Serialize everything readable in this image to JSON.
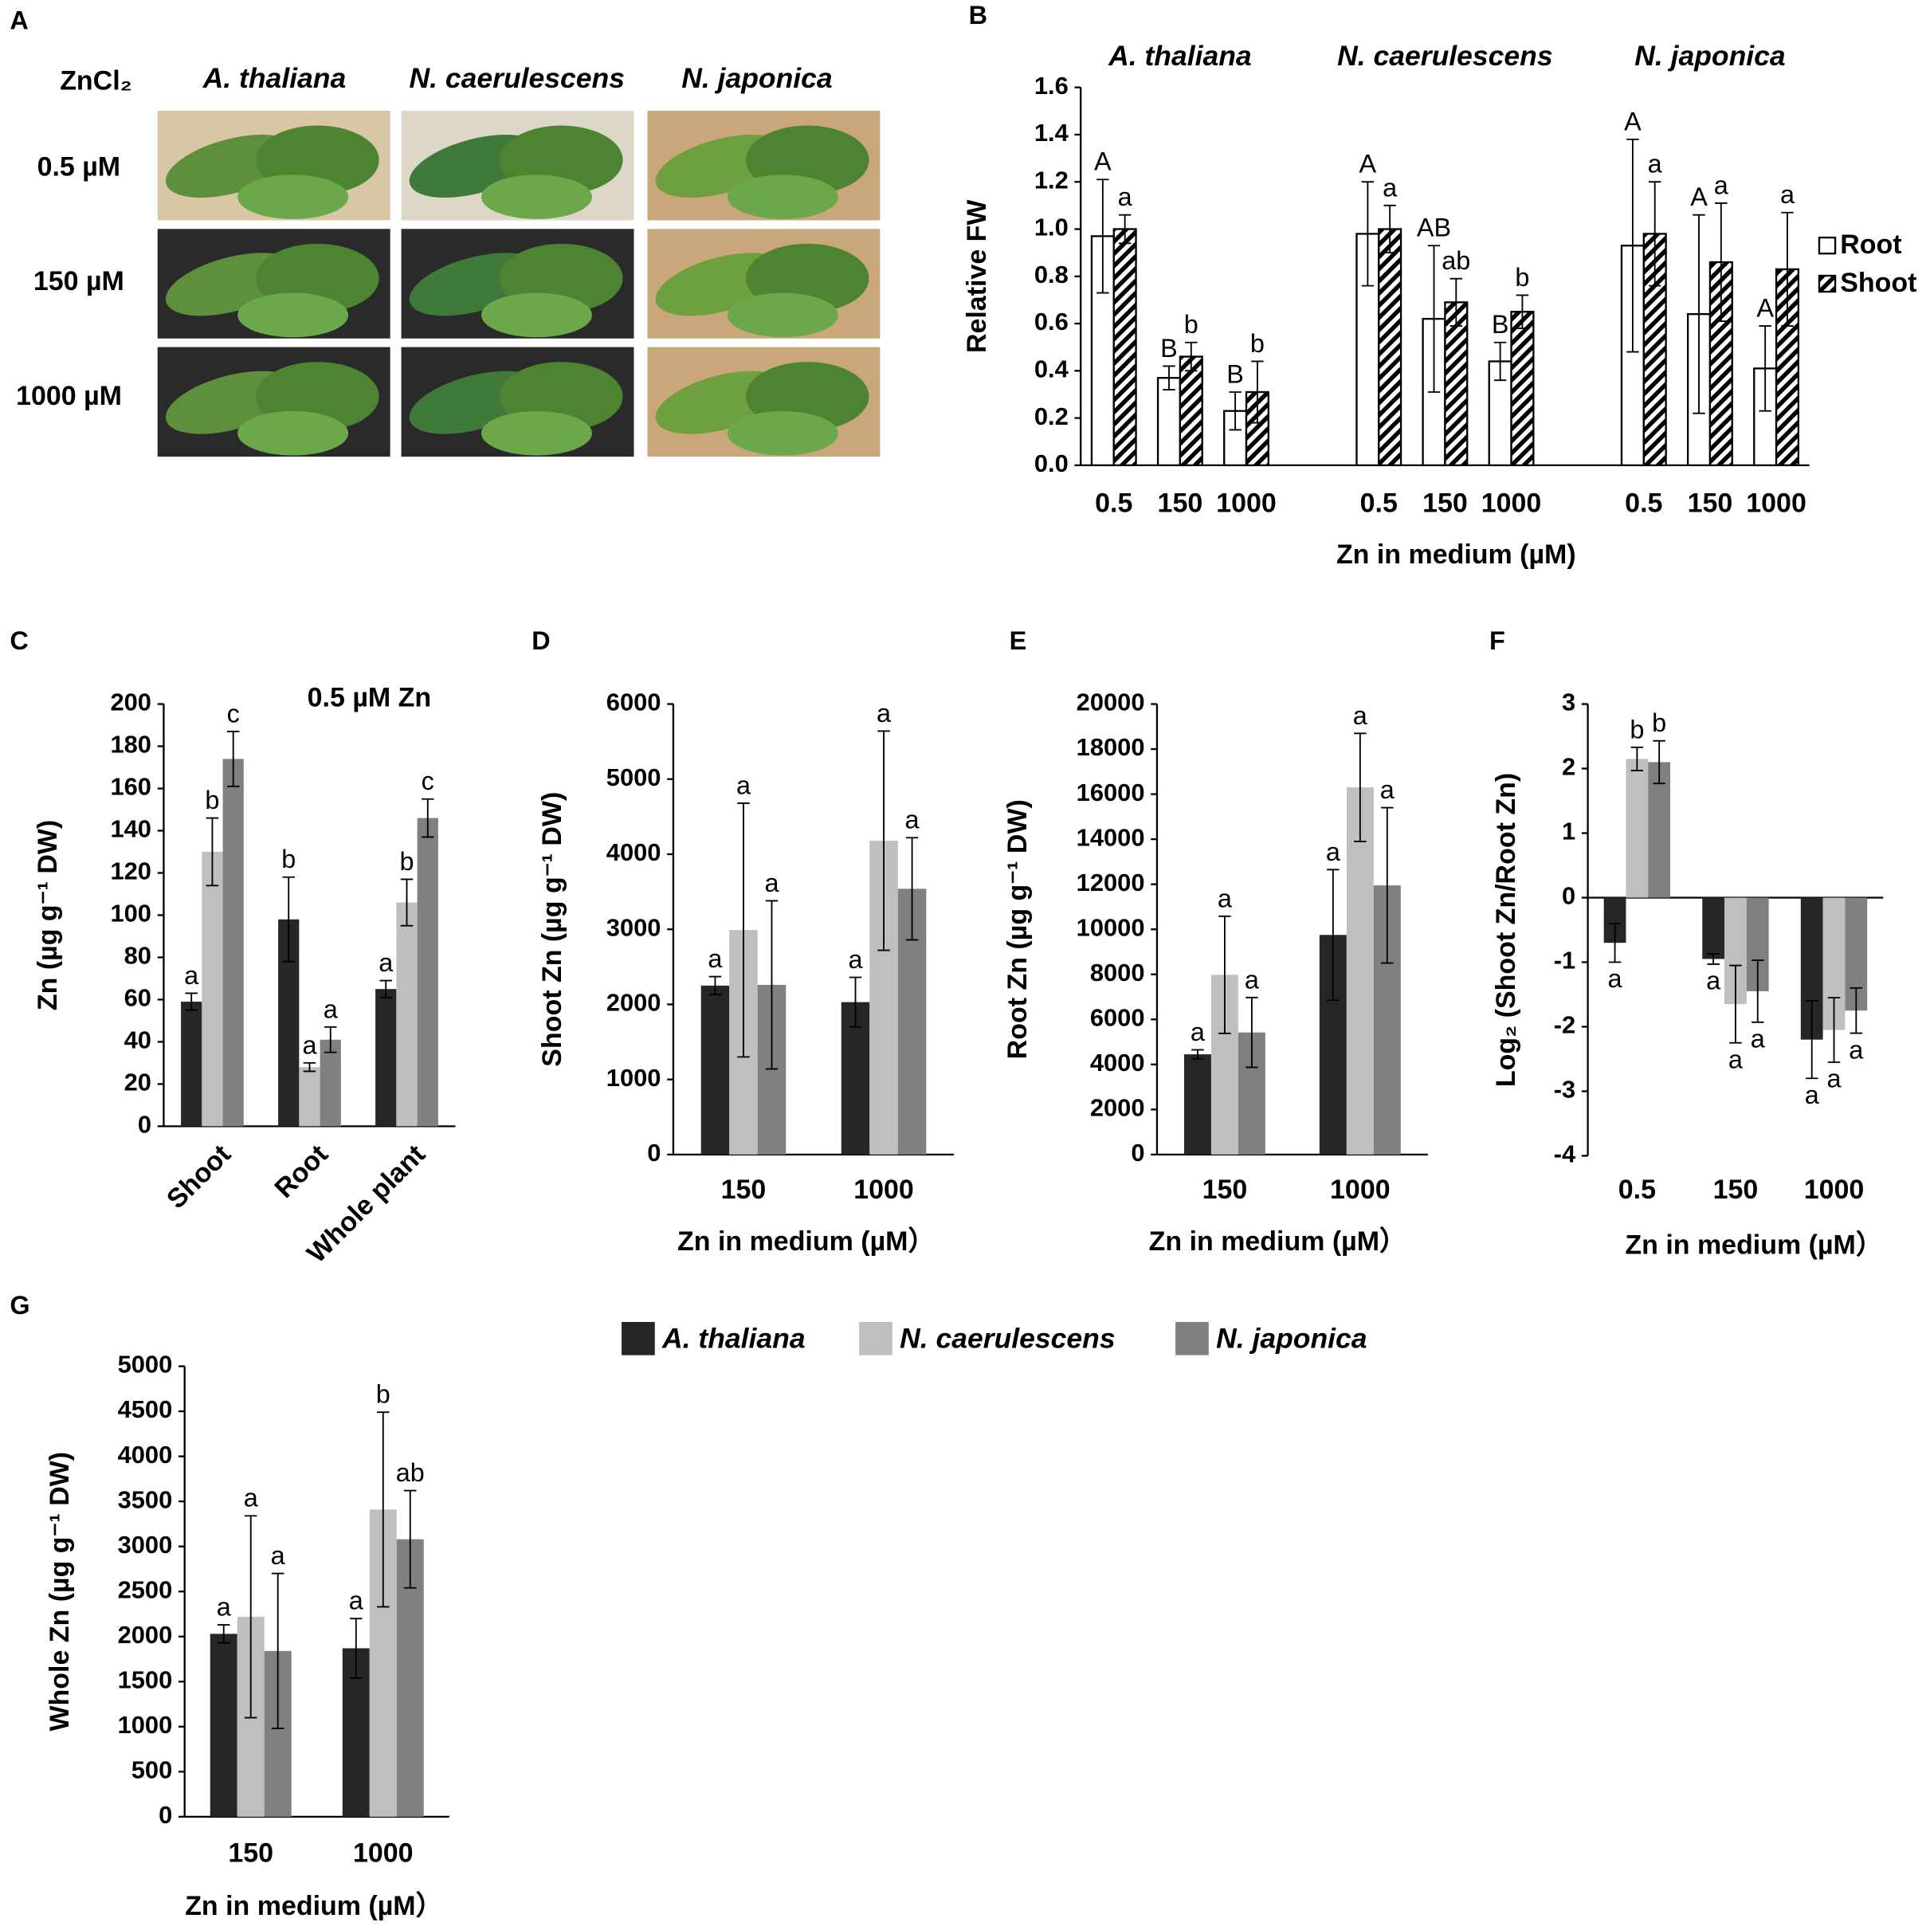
{
  "photos": {
    "panel": "A",
    "header": "ZnCl₂",
    "species": [
      "A. thaliana",
      "N. caerulescens",
      "N. japonica"
    ],
    "conditions": [
      "0.5 µM",
      "150 µM",
      "1000 µM"
    ]
  },
  "legend": {
    "names": [
      "A. thaliana",
      "N. caerulescens",
      "N. japonica"
    ],
    "colors": [
      "#262626",
      "#bfbfbf",
      "#808080"
    ]
  },
  "chart_data": [
    {
      "type": "bar",
      "panel": "B",
      "groups": [
        "A. thaliana",
        "N. caerulescens",
        "N. japonica"
      ],
      "categories": [
        "0.5",
        "150",
        "1000",
        "0.5",
        "150",
        "1000",
        "0.5",
        "150",
        "1000"
      ],
      "ylabel": "Relative FW",
      "xlabel": "Zn in medium (µM)",
      "ylim": [
        0,
        1.6
      ],
      "yticks": [
        {
          "value": 0,
          "label": "0.0"
        },
        {
          "value": 0.2,
          "label": "0.2"
        },
        {
          "value": 0.4,
          "label": "0.4"
        },
        {
          "value": 0.6,
          "label": "0.6"
        },
        {
          "value": 0.8,
          "label": "0.8"
        },
        {
          "value": 1.0,
          "label": "1.0"
        },
        {
          "value": 1.2,
          "label": "1.2"
        },
        {
          "value": 1.4,
          "label": "1.4"
        },
        {
          "value": 1.6,
          "label": "1.6"
        }
      ],
      "series": [
        {
          "name": "Root",
          "color": "#ffffff",
          "values": [
            0.97,
            0.37,
            0.23,
            0.98,
            0.62,
            0.44,
            0.93,
            0.64,
            0.41
          ],
          "errors": [
            0.24,
            0.05,
            0.08,
            0.22,
            0.31,
            0.08,
            0.45,
            0.42,
            0.18
          ],
          "letters": [
            "A",
            "B",
            "B",
            "A",
            "AB",
            "B",
            "A",
            "A",
            "A"
          ]
        },
        {
          "name": "Shoot",
          "color": "#ffffff",
          "pattern": "diagonal",
          "values": [
            1.0,
            0.46,
            0.31,
            1.0,
            0.69,
            0.65,
            0.98,
            0.86,
            0.83
          ],
          "errors": [
            0.06,
            0.06,
            0.13,
            0.1,
            0.1,
            0.07,
            0.22,
            0.25,
            0.24
          ],
          "letters": [
            "a",
            "b",
            "b",
            "a",
            "ab",
            "b",
            "a",
            "a",
            "a"
          ]
        }
      ]
    },
    {
      "type": "bar",
      "panel": "C",
      "annotation": "0.5 µM Zn",
      "categories": [
        "Shoot",
        "Root",
        "Whole plant"
      ],
      "ylabel": "Zn (µg g⁻¹ DW)",
      "ylim": [
        0,
        200
      ],
      "yticks": [
        0,
        20,
        40,
        60,
        80,
        100,
        120,
        140,
        160,
        180,
        200
      ],
      "series": [
        {
          "values": [
            59,
            98,
            65
          ],
          "errors": [
            4,
            20,
            4
          ],
          "letters": [
            "a",
            "b",
            "a"
          ]
        },
        {
          "values": [
            130,
            28,
            106
          ],
          "errors": [
            16,
            2,
            11
          ],
          "letters": [
            "b",
            "a",
            "b"
          ]
        },
        {
          "values": [
            174,
            41,
            146
          ],
          "errors": [
            13,
            6,
            9
          ],
          "letters": [
            "c",
            "a",
            "c"
          ]
        }
      ]
    },
    {
      "type": "bar",
      "panel": "D",
      "categories": [
        "150",
        "1000"
      ],
      "ylabel": "Shoot Zn (µg g⁻¹ DW)",
      "xlabel": "Zn in medium (µM）",
      "ylim": [
        0,
        6000
      ],
      "yticks": [
        0,
        1000,
        2000,
        3000,
        4000,
        5000,
        6000
      ],
      "series": [
        {
          "values": [
            2250,
            2030
          ],
          "errors": [
            120,
            330
          ],
          "letters": [
            "a",
            "a"
          ]
        },
        {
          "values": [
            2990,
            4180
          ],
          "errors": [
            1690,
            1460
          ],
          "letters": [
            "a",
            "a"
          ]
        },
        {
          "values": [
            2260,
            3540
          ],
          "errors": [
            1120,
            680
          ],
          "letters": [
            "a",
            "a"
          ]
        }
      ]
    },
    {
      "type": "bar",
      "panel": "E",
      "categories": [
        "150",
        "1000"
      ],
      "ylabel": "Root Zn (µg g⁻¹ DW)",
      "xlabel": "Zn in medium (µM）",
      "ylim": [
        0,
        20000
      ],
      "yticks": [
        0,
        2000,
        4000,
        6000,
        8000,
        10000,
        12000,
        14000,
        16000,
        18000,
        20000
      ],
      "series": [
        {
          "values": [
            4450,
            9750
          ],
          "errors": [
            200,
            2900
          ],
          "letters": [
            "a",
            "a"
          ]
        },
        {
          "values": [
            7980,
            16300
          ],
          "errors": [
            2600,
            2400
          ],
          "letters": [
            "a",
            "a"
          ]
        },
        {
          "values": [
            5420,
            11950
          ],
          "errors": [
            1550,
            3450
          ],
          "letters": [
            "a",
            "a"
          ]
        }
      ]
    },
    {
      "type": "bar",
      "panel": "F",
      "categories": [
        "0.5",
        "150",
        "1000"
      ],
      "ylabel": "Log₂ (Shoot Zn/Root Zn)",
      "xlabel": "Zn in medium (µM）",
      "ylim": [
        -4,
        3
      ],
      "yticks": [
        -4,
        -3,
        -2,
        -1,
        0,
        1,
        2,
        3
      ],
      "series": [
        {
          "values": [
            -0.7,
            -0.95,
            -2.2
          ],
          "errors": [
            0.3,
            0.08,
            0.6
          ],
          "letters": [
            "a",
            "a",
            "a"
          ]
        },
        {
          "values": [
            2.15,
            -1.65,
            -2.05
          ],
          "errors": [
            0.18,
            0.6,
            0.5
          ],
          "letters": [
            "b",
            "a",
            "a"
          ]
        },
        {
          "values": [
            2.1,
            -1.45,
            -1.75
          ],
          "errors": [
            0.33,
            0.48,
            0.35
          ],
          "letters": [
            "b",
            "a",
            "a"
          ]
        }
      ]
    },
    {
      "type": "bar",
      "panel": "G",
      "categories": [
        "150",
        "1000"
      ],
      "ylabel": "Whole Zn (µg g⁻¹ DW)",
      "xlabel": "Zn in medium (µM）",
      "ylim": [
        0,
        5000
      ],
      "yticks": [
        0,
        500,
        1000,
        1500,
        2000,
        2500,
        3000,
        3500,
        4000,
        4500,
        5000
      ],
      "series": [
        {
          "values": [
            2030,
            1870
          ],
          "errors": [
            100,
            330
          ],
          "letters": [
            "a",
            "a"
          ]
        },
        {
          "values": [
            2220,
            3410
          ],
          "errors": [
            1120,
            1080
          ],
          "letters": [
            "a",
            "b"
          ]
        },
        {
          "values": [
            1840,
            3080
          ],
          "errors": [
            860,
            540
          ],
          "letters": [
            "a",
            "ab"
          ]
        }
      ]
    }
  ]
}
